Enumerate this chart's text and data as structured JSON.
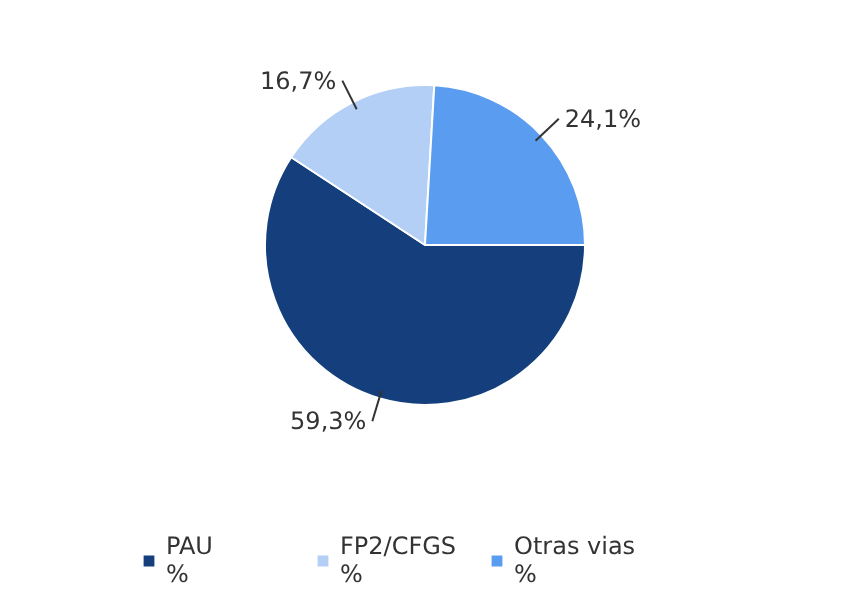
{
  "chart_data": {
    "type": "pie",
    "categories": [
      "PAU\n%",
      "FP2/CFGS\n%",
      "Otras vias\n%"
    ],
    "values": [
      59.3,
      16.7,
      24.1
    ],
    "colors": [
      "#143f7c",
      "#b3cff5",
      "#5a9cf0"
    ],
    "value_labels": [
      "59,3%",
      "16,7%",
      "24,1%"
    ],
    "legend": "bottom"
  }
}
